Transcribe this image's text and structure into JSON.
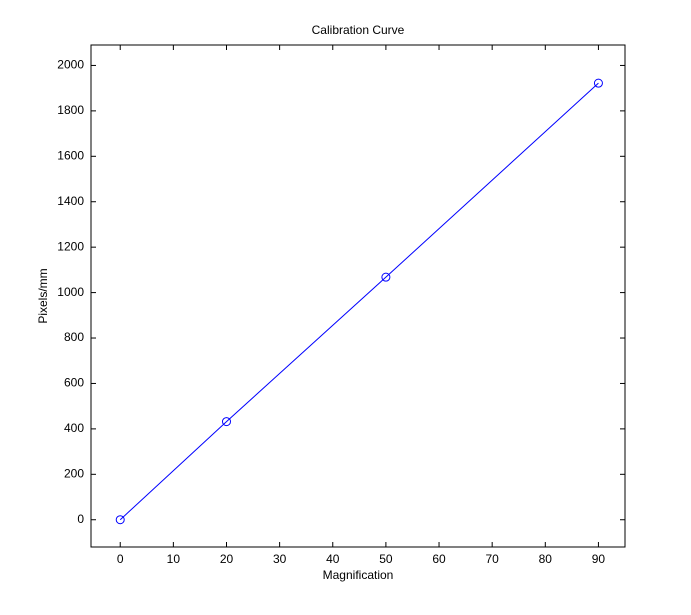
{
  "chart_data": {
    "type": "line",
    "title": "Calibration Curve",
    "x_label": "Magnification",
    "y_label": "Pixels/mm",
    "x": [
      0,
      20,
      50,
      90
    ],
    "series": [
      {
        "name": "Pixels/mm",
        "color": "#0000ff",
        "values": [
          0,
          432,
          1068,
          1922
        ]
      }
    ],
    "xlim": [
      -5.5,
      95
    ],
    "xticks": [
      0,
      10,
      20,
      30,
      40,
      50,
      60,
      70,
      80,
      90
    ],
    "ylim": [
      -120,
      2090
    ],
    "yticks": [
      0,
      200,
      400,
      600,
      800,
      1000,
      1200,
      1400,
      1600,
      1800,
      2000
    ],
    "marker": "circle"
  }
}
